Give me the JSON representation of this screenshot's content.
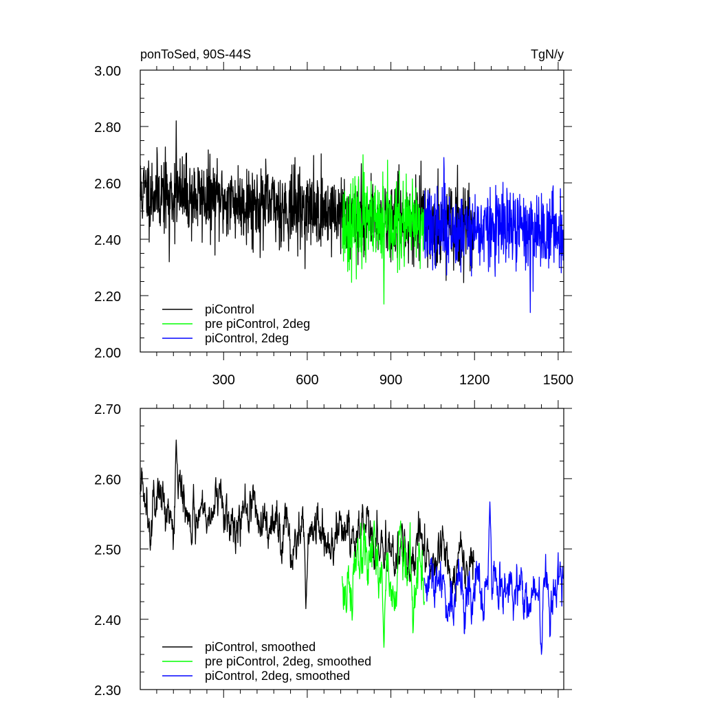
{
  "colors": {
    "piControl": "#000000",
    "pre_piControl_2deg": "#00ff00",
    "piControl_2deg": "#0000ff"
  },
  "chart_data": [
    {
      "id": "top",
      "type": "line",
      "title_left": "ponToSed, 90S-44S",
      "title_right": "TgN/y",
      "xlabel": "",
      "ylabel": "",
      "xlim": [
        1,
        1520
      ],
      "ylim": [
        2.0,
        3.0
      ],
      "yticks": [
        2.0,
        2.2,
        2.4,
        2.6,
        2.8,
        3.0
      ],
      "ytick_labels": [
        "2.00",
        "2.20",
        "2.40",
        "2.60",
        "2.80",
        "3.00"
      ],
      "xticks": [
        300,
        600,
        900,
        1200,
        1500
      ],
      "xtick_labels": [
        "300",
        "600",
        "900",
        "1200",
        "1500"
      ],
      "legend_position": "bottom-left",
      "series": [
        {
          "name": "piControl",
          "color_key": "piControl",
          "x_start": 1,
          "x_end": 1200,
          "mean_start": 2.57,
          "mean_end": 2.44,
          "noise": 0.07,
          "seed": 11,
          "peak": [
            130,
            2.82
          ],
          "low": [
            105,
            2.32
          ]
        },
        {
          "name": "pre piControl, 2deg",
          "color_key": "pre_piControl_2deg",
          "x_start": 725,
          "x_end": 1020,
          "mean_start": 2.45,
          "mean_end": 2.45,
          "noise": 0.075,
          "seed": 23,
          "peak": [
            800,
            2.7
          ],
          "low": [
            875,
            2.17
          ]
        },
        {
          "name": "piControl, 2deg",
          "color_key": "piControl_2deg",
          "x_start": 1020,
          "x_end": 1520,
          "mean_start": 2.44,
          "mean_end": 2.43,
          "noise": 0.07,
          "seed": 37,
          "peak": [
            1090,
            2.69
          ],
          "low": [
            1400,
            2.14
          ]
        }
      ]
    },
    {
      "id": "bottom",
      "type": "line",
      "title_left": "",
      "title_right": "",
      "xlabel": "",
      "ylabel": "",
      "xlim": [
        1,
        1520
      ],
      "ylim": [
        2.3,
        2.7
      ],
      "yticks": [
        2.3,
        2.4,
        2.5,
        2.6,
        2.7
      ],
      "ytick_labels": [
        "2.30",
        "2.40",
        "2.50",
        "2.60",
        "2.70"
      ],
      "xticks": [
        300,
        600,
        900,
        1200,
        1500
      ],
      "xtick_labels": [],
      "legend_position": "bottom-left",
      "series": [
        {
          "name": "piControl, smoothed",
          "color_key": "piControl",
          "x_start": 1,
          "x_end": 1200,
          "mean_start": 2.58,
          "mean_end": 2.47,
          "noise": 0.028,
          "seed": 5,
          "peak": [
            130,
            2.655
          ],
          "low": [
            595,
            2.415
          ]
        },
        {
          "name": "pre piControl, 2deg, smoothed",
          "color_key": "pre_piControl_2deg",
          "x_start": 725,
          "x_end": 1020,
          "mean_start": 2.45,
          "mean_end": 2.47,
          "noise": 0.035,
          "seed": 17,
          "peak": [
            840,
            2.54
          ],
          "low": [
            875,
            2.36
          ]
        },
        {
          "name": "piControl, 2deg, smoothed",
          "color_key": "piControl_2deg",
          "x_start": 1020,
          "x_end": 1520,
          "mean_start": 2.44,
          "mean_end": 2.43,
          "noise": 0.03,
          "seed": 29,
          "peak": [
            1255,
            2.567
          ],
          "low": [
            1440,
            2.35
          ]
        }
      ]
    }
  ]
}
